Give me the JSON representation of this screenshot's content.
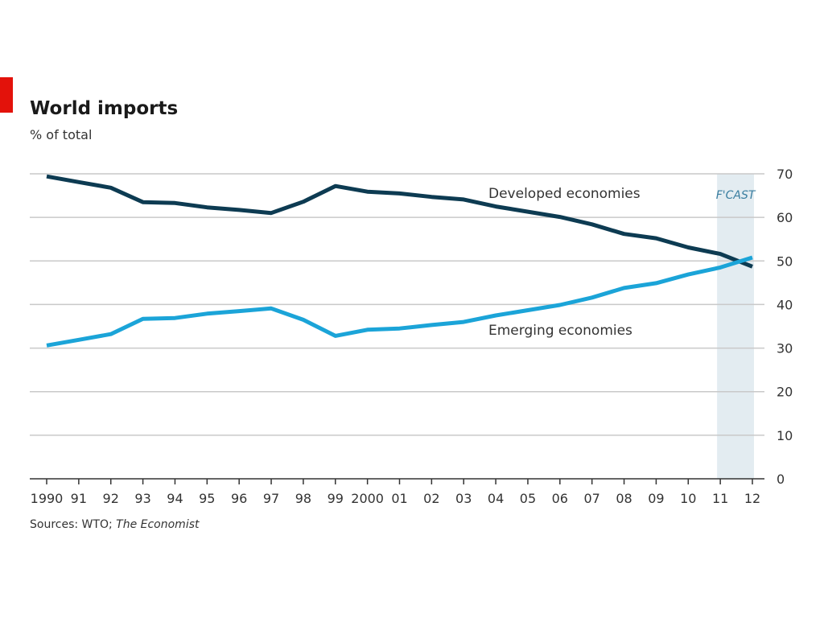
{
  "colors": {
    "accent": "#e3120b",
    "developed": "#0d3b52",
    "emerging": "#1ba4d8",
    "forecast_band": "#e3ecf1",
    "gridline": "#c9c9c9"
  },
  "source": {
    "prefix": "Sources: WTO; ",
    "italic": "The Economist"
  },
  "chart_data": {
    "type": "line",
    "title": "World imports",
    "subtitle": "% of total",
    "x": [
      1990,
      1991,
      1992,
      1993,
      1994,
      1995,
      1996,
      1997,
      1998,
      1999,
      2000,
      2001,
      2002,
      2003,
      2004,
      2005,
      2006,
      2007,
      2008,
      2009,
      2010,
      2011,
      2012
    ],
    "x_tick_labels": [
      "1990",
      "91",
      "92",
      "93",
      "94",
      "95",
      "96",
      "97",
      "98",
      "99",
      "2000",
      "01",
      "02",
      "03",
      "04",
      "05",
      "06",
      "07",
      "08",
      "09",
      "10",
      "11",
      "12"
    ],
    "ylim": [
      0,
      70
    ],
    "y_ticks": [
      0,
      10,
      20,
      30,
      40,
      50,
      60,
      70
    ],
    "y_axis_position": "right",
    "grid": true,
    "forecast": {
      "label": "F'CAST",
      "from": 2011,
      "to": 2012
    },
    "series": [
      {
        "name": "Developed economies",
        "values": [
          69.4,
          68.1,
          66.8,
          63.5,
          63.3,
          62.3,
          61.7,
          61.0,
          63.6,
          67.2,
          65.9,
          65.5,
          64.7,
          64.1,
          62.5,
          61.3,
          60.1,
          58.4,
          56.2,
          55.2,
          53.1,
          51.6,
          48.7
        ]
      },
      {
        "name": "Emerging economies",
        "values": [
          30.6,
          31.9,
          33.2,
          36.7,
          36.9,
          37.9,
          38.5,
          39.1,
          36.5,
          32.8,
          34.2,
          34.5,
          35.3,
          36.0,
          37.5,
          38.7,
          39.9,
          41.6,
          43.8,
          44.9,
          46.9,
          48.5,
          50.8
        ]
      }
    ]
  }
}
